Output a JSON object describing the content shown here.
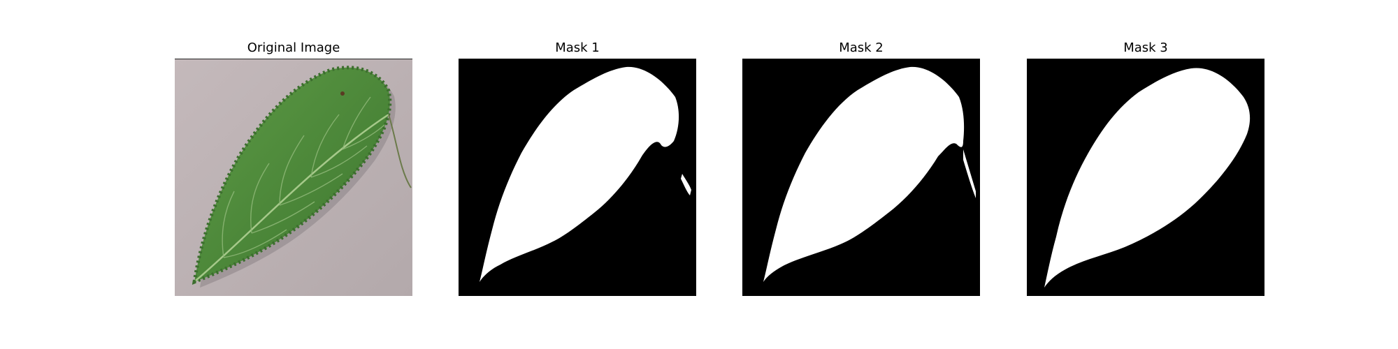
{
  "figure": {
    "panels": [
      {
        "title": "Original Image",
        "kind": "photo",
        "subject": "leaf-photo"
      },
      {
        "title": "Mask 1",
        "kind": "mask",
        "variant": 1
      },
      {
        "title": "Mask 2",
        "kind": "mask",
        "variant": 2
      },
      {
        "title": "Mask 3",
        "kind": "mask",
        "variant": 3
      }
    ],
    "colors": {
      "background": "#ffffff",
      "mask_foreground": "#ffffff",
      "mask_background": "#000000",
      "photo_background": "#bdb3b5",
      "leaf_green": "#4f8a3b",
      "leaf_vein": "#a6c98a"
    }
  }
}
